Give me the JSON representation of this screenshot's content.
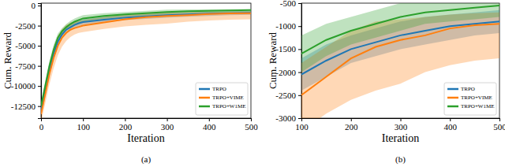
{
  "chart_data": [
    {
      "type": "line",
      "title": "(a)",
      "x_label": "Iteration",
      "y_label": "Cum. Reward",
      "x": [
        0,
        10,
        20,
        30,
        40,
        50,
        60,
        70,
        80,
        90,
        100,
        150,
        200,
        250,
        300,
        350,
        400,
        450,
        500
      ],
      "xlim": [
        0,
        500
      ],
      "xticks": [
        0,
        100,
        200,
        300,
        400,
        500
      ],
      "ylim": [
        -14000,
        300
      ],
      "yticks": [
        -12500,
        -10000,
        -7500,
        -5000,
        -2500,
        0
      ],
      "legend": "lower right",
      "series": [
        {
          "name": "TRPO",
          "color": "#1f77b4",
          "values": [
            -13000,
            -10500,
            -8000,
            -6000,
            -4500,
            -3600,
            -3000,
            -2700,
            -2400,
            -2200,
            -2050,
            -1750,
            -1500,
            -1350,
            -1200,
            -1100,
            -1000,
            -950,
            -900
          ],
          "lower": [
            -13700,
            -11300,
            -8800,
            -6700,
            -5100,
            -4100,
            -3500,
            -3100,
            -2800,
            -2600,
            -2400,
            -2100,
            -1800,
            -1650,
            -1500,
            -1400,
            -1300,
            -1200,
            -1150
          ],
          "upper": [
            -12300,
            -9700,
            -7200,
            -5300,
            -3900,
            -3100,
            -2500,
            -2300,
            -2000,
            -1800,
            -1700,
            -1400,
            -1200,
            -1050,
            -900,
            -800,
            -750,
            -700,
            -650
          ]
        },
        {
          "name": "TRPO+VIME",
          "color": "#ff7f0e",
          "values": [
            -13500,
            -11000,
            -8500,
            -6500,
            -5000,
            -4000,
            -3400,
            -3000,
            -2800,
            -2650,
            -2500,
            -2100,
            -1700,
            -1450,
            -1300,
            -1200,
            -1050,
            -980,
            -950
          ],
          "lower": [
            -14500,
            -12200,
            -9800,
            -7800,
            -6200,
            -5100,
            -4400,
            -3900,
            -3600,
            -3400,
            -3300,
            -2900,
            -2600,
            -2400,
            -2250,
            -2000,
            -1850,
            -1750,
            -1700
          ],
          "upper": [
            -12500,
            -9800,
            -7200,
            -5200,
            -3800,
            -2900,
            -2400,
            -2100,
            -2000,
            -1900,
            -1800,
            -1450,
            -1100,
            -900,
            -850,
            -800,
            -750,
            -720,
            -700
          ]
        },
        {
          "name": "TRPO+W1ME",
          "color": "#2ca02c",
          "values": [
            -12500,
            -10000,
            -7500,
            -5500,
            -4000,
            -3200,
            -2700,
            -2300,
            -2000,
            -1800,
            -1600,
            -1300,
            -1100,
            -950,
            -800,
            -700,
            -650,
            -600,
            -550
          ],
          "lower": [
            -13000,
            -10600,
            -8100,
            -6100,
            -4500,
            -3600,
            -3100,
            -2700,
            -2400,
            -2200,
            -2000,
            -1650,
            -1400,
            -1250,
            -1100,
            -950,
            -900,
            -850,
            -800
          ],
          "upper": [
            -12000,
            -9400,
            -6900,
            -4900,
            -3500,
            -2800,
            -2300,
            -1900,
            -1600,
            -1400,
            -1200,
            -950,
            -800,
            -650,
            -500,
            -480,
            -460,
            -450,
            -450
          ]
        }
      ]
    },
    {
      "type": "line",
      "title": "(b)",
      "x_label": "Iteration",
      "y_label": "Cum. Reward",
      "x": [
        100,
        150,
        200,
        250,
        300,
        350,
        400,
        450,
        500
      ],
      "xlim": [
        100,
        500
      ],
      "xticks": [
        100,
        200,
        300,
        400,
        500
      ],
      "ylim": [
        -3000,
        -500
      ],
      "yticks": [
        -3000,
        -2500,
        -2000,
        -1500,
        -1000,
        -500
      ],
      "legend": "lower right",
      "series": [
        {
          "name": "TRPO",
          "color": "#1f77b4",
          "values": [
            -2050,
            -1750,
            -1500,
            -1350,
            -1200,
            -1100,
            -1000,
            -950,
            -900
          ],
          "lower": [
            -2400,
            -2100,
            -1800,
            -1650,
            -1500,
            -1400,
            -1300,
            -1200,
            -1150
          ],
          "upper": [
            -1700,
            -1400,
            -1200,
            -1050,
            -900,
            -800,
            -750,
            -700,
            -650
          ]
        },
        {
          "name": "TRPO+VIME",
          "color": "#ff7f0e",
          "values": [
            -2500,
            -2100,
            -1700,
            -1450,
            -1300,
            -1200,
            -1050,
            -980,
            -950
          ],
          "lower": [
            -3300,
            -2900,
            -2600,
            -2400,
            -2250,
            -2000,
            -1850,
            -1750,
            -1700
          ],
          "upper": [
            -1800,
            -1450,
            -1100,
            -900,
            -850,
            -800,
            -750,
            -720,
            -700
          ]
        },
        {
          "name": "TRPO+W1ME",
          "color": "#2ca02c",
          "values": [
            -1600,
            -1300,
            -1100,
            -950,
            -800,
            -700,
            -650,
            -600,
            -550
          ],
          "lower": [
            -2000,
            -1650,
            -1400,
            -1250,
            -1100,
            -950,
            -900,
            -850,
            -800
          ],
          "upper": [
            -1200,
            -950,
            -800,
            -650,
            -500,
            -480,
            -460,
            -450,
            -450
          ]
        }
      ]
    }
  ]
}
